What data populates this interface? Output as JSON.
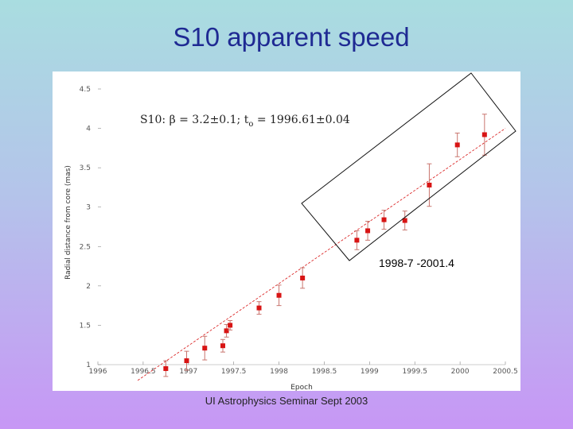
{
  "slide": {
    "title": "S10 apparent speed",
    "footer": "UI Astrophysics Seminar Sept 2003"
  },
  "chart_data": {
    "type": "scatter",
    "xlabel": "Epoch",
    "ylabel": "Radial distance from core (mas)",
    "xlim": [
      1996,
      2000.5
    ],
    "ylim": [
      1,
      4.5
    ],
    "x_ticks": [
      1996,
      1996.5,
      1997,
      1997.5,
      1998,
      1998.5,
      1999,
      1999.5,
      2000,
      2000.5
    ],
    "x_tick_labels": [
      "1996",
      "1996.5",
      "1997",
      "1997.5",
      "1998",
      "1998.5",
      "1999",
      "1999.5",
      "2000",
      "2000.5"
    ],
    "y_ticks": [
      1,
      1.5,
      2,
      2.5,
      3,
      3.5,
      4,
      4.5
    ],
    "y_tick_labels": [
      "1",
      "1.5",
      "2",
      "2.5",
      "3",
      "3.5",
      "4",
      "4.5"
    ],
    "annotation": {
      "prefix": "S10: β = 3.2",
      "value_sep": "±",
      "beta_err": "0.1; t",
      "t0_sub": "o",
      "t0_text": " = 1996.61",
      "t0_err": "±0.04"
    },
    "series": [
      {
        "color": "#d81414",
        "points": [
          {
            "x": 1996.75,
            "y": 0.95,
            "err": 0.1
          },
          {
            "x": 1996.98,
            "y": 1.05,
            "err": 0.12
          },
          {
            "x": 1997.18,
            "y": 1.21,
            "err": 0.15
          },
          {
            "x": 1997.38,
            "y": 1.24,
            "err": 0.08
          },
          {
            "x": 1997.42,
            "y": 1.43,
            "err": 0.08
          },
          {
            "x": 1997.46,
            "y": 1.5,
            "err": 0.06
          },
          {
            "x": 1997.78,
            "y": 1.72,
            "err": 0.08
          },
          {
            "x": 1998.0,
            "y": 1.88,
            "err": 0.13
          },
          {
            "x": 1998.26,
            "y": 2.1,
            "err": 0.13
          },
          {
            "x": 1998.86,
            "y": 2.58,
            "err": 0.12
          },
          {
            "x": 1998.98,
            "y": 2.7,
            "err": 0.12
          },
          {
            "x": 1999.16,
            "y": 2.84,
            "err": 0.12
          },
          {
            "x": 1999.39,
            "y": 2.83,
            "err": 0.12
          },
          {
            "x": 1999.66,
            "y": 3.28,
            "err": 0.27
          },
          {
            "x": 1999.97,
            "y": 3.79,
            "err": 0.15
          },
          {
            "x": 2000.27,
            "y": 3.92,
            "err": 0.26
          }
        ]
      }
    ],
    "fit_line": {
      "x": [
        1996.44,
        2000.5
      ],
      "y": [
        0.8,
        4.0
      ],
      "color": "#d81414",
      "style": "dashed"
    },
    "highlight": {
      "label": "1998-7 -2001.4"
    }
  }
}
